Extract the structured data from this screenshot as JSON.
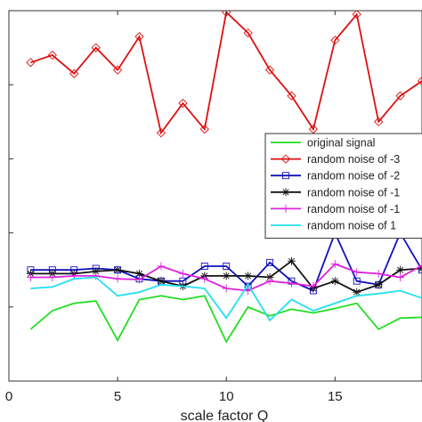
{
  "chart_data": {
    "type": "line",
    "title": "",
    "xlabel": "scale factor Q",
    "ylabel": "",
    "xlim": [
      0,
      19
    ],
    "ylim": [
      0,
      5
    ],
    "xticks": [
      0,
      5,
      10,
      15
    ],
    "yticks": [
      1,
      2,
      3,
      4
    ],
    "grid": false,
    "legend_position": "right",
    "x": [
      1,
      2,
      3,
      4,
      5,
      6,
      7,
      8,
      9,
      10,
      11,
      12,
      13,
      14,
      15,
      16,
      17,
      18,
      19
    ],
    "series": [
      {
        "name": "original signal",
        "color": "#22dd22",
        "marker": "none",
        "values": [
          0.7,
          0.95,
          1.05,
          1.08,
          0.55,
          1.1,
          1.15,
          1.1,
          1.15,
          0.53,
          1.0,
          0.88,
          0.97,
          0.92,
          0.98,
          1.05,
          0.7,
          0.85,
          0.86
        ]
      },
      {
        "name": "random noise of -3",
        "color": "#dd1111",
        "marker": "diamond",
        "values": [
          4.3,
          4.4,
          4.15,
          4.5,
          4.2,
          4.65,
          3.35,
          3.75,
          3.4,
          4.98,
          4.7,
          4.2,
          3.85,
          3.4,
          4.6,
          4.95,
          3.5,
          3.85,
          4.05
        ]
      },
      {
        "name": "random noise of -2",
        "color": "#1111bb",
        "marker": "square",
        "values": [
          1.5,
          1.5,
          1.5,
          1.52,
          1.5,
          1.38,
          1.35,
          1.35,
          1.55,
          1.55,
          1.28,
          1.6,
          1.35,
          1.22,
          2.0,
          1.35,
          1.3,
          2.0,
          1.5
        ]
      },
      {
        "name": "random noise of -1",
        "color": "#111111",
        "marker": "asterisk",
        "values": [
          1.45,
          1.45,
          1.45,
          1.48,
          1.5,
          1.45,
          1.35,
          1.28,
          1.42,
          1.42,
          1.42,
          1.4,
          1.62,
          1.25,
          1.35,
          1.2,
          1.3,
          1.5,
          1.52
        ]
      },
      {
        "name": "random noise of -1",
        "color": "#dd22dd",
        "marker": "plus",
        "values": [
          1.4,
          1.4,
          1.42,
          1.42,
          1.38,
          1.37,
          1.55,
          1.45,
          1.38,
          1.25,
          1.22,
          1.35,
          1.32,
          1.28,
          1.58,
          1.47,
          1.45,
          1.4,
          1.56
        ]
      },
      {
        "name": "random noise of 1",
        "color": "#22e0ee",
        "marker": "none",
        "values": [
          1.25,
          1.27,
          1.38,
          1.4,
          1.15,
          1.2,
          1.3,
          1.28,
          1.25,
          0.85,
          1.3,
          0.82,
          1.1,
          0.95,
          1.05,
          1.15,
          1.18,
          1.22,
          1.12
        ]
      }
    ]
  }
}
